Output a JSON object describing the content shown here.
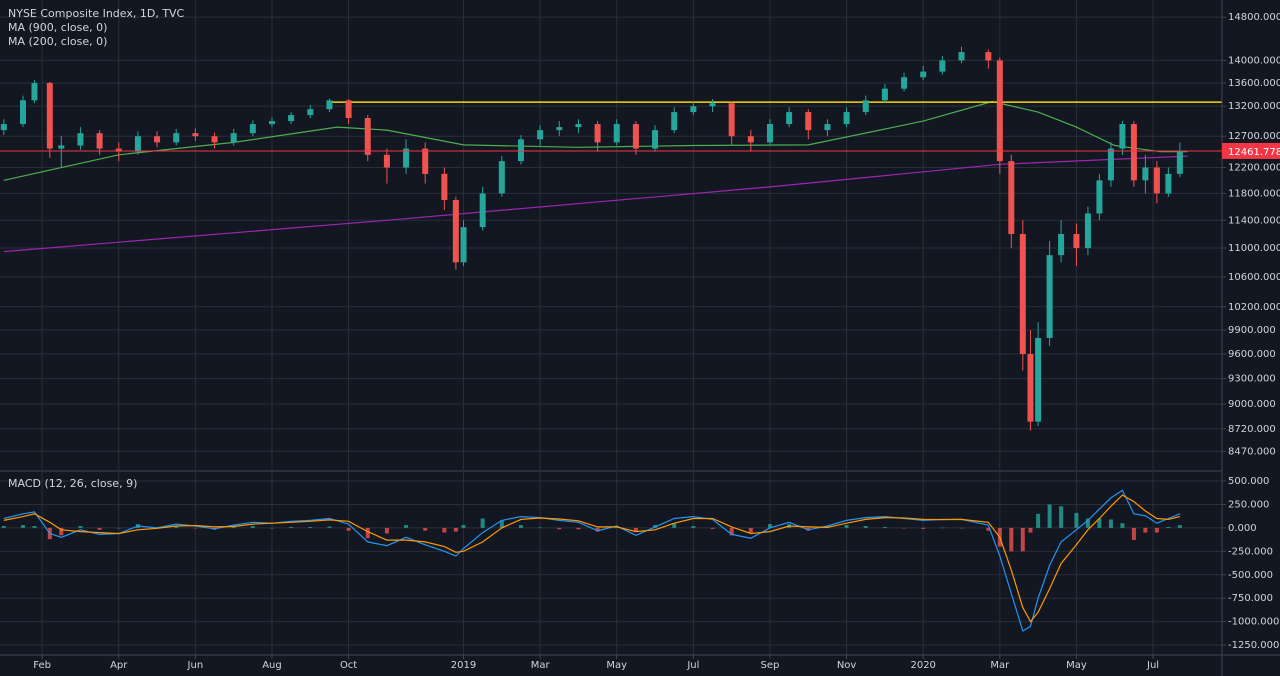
{
  "chart_data": [
    {
      "type": "candlestick",
      "title": "NYSE Composite Index, 1D, TVC",
      "log": true,
      "grid": true,
      "up_color": "#26a69a",
      "down_color": "#ef5350",
      "x": [
        0,
        0.5,
        0.8,
        1.2,
        1.5,
        2,
        2.5,
        3,
        3.5,
        4,
        4.5,
        5,
        5.5,
        6,
        6.5,
        7,
        7.5,
        8,
        8.5,
        9,
        9.5,
        10,
        10.5,
        11,
        11.5,
        11.8,
        12,
        12.5,
        13,
        13.5,
        14,
        14.5,
        15,
        15.5,
        16,
        16.5,
        17,
        17.5,
        18,
        18.5,
        19,
        19.5,
        20,
        20.5,
        21,
        21.5,
        22,
        22.5,
        23,
        23.5,
        24,
        24.5,
        25,
        25.7,
        26,
        26.3,
        26.6,
        26.8,
        27,
        27.3,
        27.6,
        28,
        28.3,
        28.6,
        28.9,
        29.2,
        29.5,
        29.8,
        30.1,
        30.4,
        30.7
      ],
      "open": [
        12800,
        12900,
        13300,
        13600,
        12500,
        12550,
        12750,
        12500,
        12450,
        12700,
        12600,
        12750,
        12700,
        12600,
        12750,
        12900,
        12950,
        13050,
        13150,
        13300,
        13000,
        12400,
        12200,
        12500,
        12100,
        11700,
        10800,
        11300,
        11800,
        12300,
        12650,
        12800,
        12850,
        12900,
        12600,
        12900,
        12500,
        12800,
        13100,
        13200,
        13250,
        12700,
        12600,
        12900,
        13100,
        12800,
        12900,
        13100,
        13300,
        13500,
        13700,
        13800,
        14000,
        14150,
        14000,
        12300,
        11200,
        9600,
        8800,
        9800,
        10900,
        11200,
        11000,
        11500,
        12000,
        12500,
        12900,
        12000,
        12200,
        11800,
        12100
      ],
      "high": [
        12980,
        13380,
        13650,
        13620,
        12700,
        12850,
        12800,
        12600,
        12780,
        12780,
        12820,
        12830,
        12760,
        12820,
        12960,
        13020,
        13100,
        13220,
        13330,
        13320,
        13050,
        12500,
        12650,
        12600,
        12200,
        11750,
        11400,
        11900,
        12380,
        12720,
        12880,
        12950,
        12980,
        12950,
        12980,
        12950,
        12880,
        13180,
        13280,
        13320,
        13280,
        12800,
        12980,
        13180,
        13150,
        12980,
        13180,
        13380,
        13580,
        13780,
        13900,
        14080,
        14250,
        14200,
        14050,
        12400,
        11400,
        9900,
        10000,
        11100,
        11400,
        11350,
        11600,
        12100,
        12600,
        12950,
        12950,
        12400,
        12300,
        12200,
        12600
      ],
      "low": [
        12720,
        12850,
        13250,
        12350,
        12200,
        12480,
        12400,
        12300,
        12400,
        12520,
        12550,
        12620,
        12500,
        12550,
        12700,
        12850,
        12900,
        13000,
        13100,
        12900,
        12300,
        11950,
        12100,
        11950,
        11550,
        10700,
        10750,
        11250,
        11750,
        12250,
        12550,
        12700,
        12750,
        12450,
        12550,
        12400,
        12450,
        12750,
        13050,
        13100,
        12550,
        12450,
        12550,
        12850,
        12650,
        12700,
        12850,
        13050,
        13250,
        13450,
        13650,
        13750,
        13950,
        13850,
        12100,
        11000,
        9400,
        8700,
        8750,
        9700,
        10800,
        10750,
        10900,
        11400,
        11900,
        12400,
        11900,
        11800,
        11650,
        11750,
        12050
      ],
      "close": [
        12900,
        13300,
        13600,
        12500,
        12550,
        12750,
        12500,
        12450,
        12700,
        12600,
        12750,
        12700,
        12600,
        12750,
        12900,
        12950,
        13050,
        13150,
        13300,
        13000,
        12400,
        12200,
        12500,
        12100,
        11700,
        10800,
        11300,
        11800,
        12300,
        12650,
        12800,
        12850,
        12900,
        12600,
        12900,
        12500,
        12800,
        13100,
        13200,
        13250,
        12700,
        12600,
        12900,
        13100,
        12800,
        12900,
        13100,
        13300,
        13500,
        13700,
        13800,
        14000,
        14150,
        14000,
        12300,
        11200,
        9600,
        8800,
        9800,
        10900,
        11200,
        11000,
        11500,
        12000,
        12500,
        12900,
        12000,
        12200,
        11800,
        12100,
        12450
      ],
      "series": [
        {
          "name": "MA (900, close, 0)",
          "color": "#9c27b0",
          "x": [
            0,
            10,
            20,
            26,
            30.9
          ],
          "values": [
            10950,
            11400,
            11900,
            12250,
            12380
          ]
        },
        {
          "name": "MA (200, close, 0)",
          "color": "#4caf50",
          "x": [
            0,
            3,
            6,
            8.7,
            10,
            12,
            15,
            18,
            21,
            24,
            25.8,
            27,
            28,
            29,
            30.2,
            30.9
          ],
          "values": [
            12000,
            12400,
            12600,
            12850,
            12800,
            12560,
            12520,
            12550,
            12560,
            12950,
            13280,
            13100,
            12850,
            12550,
            12450,
            12450
          ]
        }
      ],
      "hlines": [
        {
          "value": 13270,
          "from_x": 8.5,
          "color": "#f5d90a"
        }
      ],
      "last_price": 12461.778,
      "last_price_color": "#f23645",
      "xlim": [
        -0.1,
        31.8
      ],
      "ylim": [
        8270,
        15130
      ],
      "yticks": [
        {
          "value": 14800,
          "label": "14800.000"
        },
        {
          "value": 14000,
          "label": "14000.000"
        },
        {
          "value": 13600,
          "label": "13600.000"
        },
        {
          "value": 13200,
          "label": "13200.000"
        },
        {
          "value": 12700,
          "label": "12700.000"
        },
        {
          "value": 12200,
          "label": "12200.000"
        },
        {
          "value": 11800,
          "label": "11800.000"
        },
        {
          "value": 11400,
          "label": "11400.000"
        },
        {
          "value": 11000,
          "label": "11000.000"
        },
        {
          "value": 10600,
          "label": "10600.000"
        },
        {
          "value": 10200,
          "label": "10200.000"
        },
        {
          "value": 9900,
          "label": "9900.000"
        },
        {
          "value": 9600,
          "label": "9600.000"
        },
        {
          "value": 9300,
          "label": "9300.000"
        },
        {
          "value": 9000,
          "label": "9000.000"
        },
        {
          "value": 8720,
          "label": "8720.000"
        },
        {
          "value": 8470,
          "label": "8470.000"
        }
      ]
    },
    {
      "type": "macd",
      "title": "MACD (12, 26, close, 9)",
      "grid": true,
      "up_color": "#26a69a",
      "down_color": "#ef5350",
      "macd_color": "#2196f3",
      "signal_color": "#ff9800",
      "x": [
        0,
        0.5,
        0.8,
        1.2,
        1.5,
        2,
        2.5,
        3,
        3.5,
        4,
        4.5,
        5,
        5.5,
        6,
        6.5,
        7,
        7.5,
        8,
        8.5,
        9,
        9.5,
        10,
        10.5,
        11,
        11.5,
        11.8,
        12,
        12.5,
        13,
        13.5,
        14,
        14.5,
        15,
        15.5,
        16,
        16.5,
        17,
        17.5,
        18,
        18.5,
        19,
        19.5,
        20,
        20.5,
        21,
        21.5,
        22,
        22.5,
        23,
        23.5,
        24,
        24.5,
        25,
        25.7,
        26,
        26.3,
        26.6,
        26.8,
        27,
        27.3,
        27.6,
        28,
        28.3,
        28.6,
        28.9,
        29.2,
        29.5,
        29.8,
        30.1,
        30.4,
        30.7
      ],
      "macd": [
        100,
        150,
        170,
        -60,
        -100,
        -20,
        -70,
        -60,
        20,
        0,
        40,
        20,
        -10,
        30,
        60,
        50,
        70,
        80,
        100,
        40,
        -150,
        -190,
        -100,
        -180,
        -250,
        -300,
        -220,
        -50,
        80,
        120,
        110,
        80,
        60,
        -30,
        20,
        -80,
        10,
        100,
        120,
        90,
        -70,
        -110,
        0,
        60,
        -20,
        20,
        80,
        110,
        120,
        100,
        80,
        90,
        90,
        30,
        -300,
        -700,
        -1100,
        -1050,
        -750,
        -400,
        -150,
        -20,
        80,
        200,
        320,
        400,
        150,
        130,
        50,
        100,
        150
      ],
      "signal": [
        80,
        120,
        150,
        60,
        -20,
        -40,
        -50,
        -60,
        -20,
        -5,
        20,
        25,
        10,
        15,
        40,
        50,
        60,
        70,
        85,
        70,
        -40,
        -130,
        -130,
        -150,
        -200,
        -260,
        -250,
        -150,
        0,
        90,
        105,
        95,
        75,
        10,
        10,
        -40,
        -20,
        50,
        100,
        100,
        10,
        -60,
        -40,
        20,
        10,
        5,
        50,
        90,
        110,
        105,
        90,
        88,
        90,
        60,
        -100,
        -450,
        -850,
        -1000,
        -900,
        -650,
        -380,
        -180,
        -20,
        100,
        230,
        350,
        280,
        180,
        100,
        90,
        120
      ],
      "histogram": [
        20,
        30,
        20,
        -120,
        -80,
        20,
        -20,
        0,
        40,
        5,
        20,
        -5,
        -20,
        15,
        20,
        0,
        10,
        10,
        15,
        -30,
        -110,
        -60,
        30,
        -30,
        -50,
        -40,
        30,
        100,
        80,
        30,
        5,
        -15,
        -15,
        -40,
        10,
        -40,
        30,
        50,
        20,
        -10,
        -80,
        -50,
        40,
        40,
        -30,
        15,
        30,
        20,
        10,
        -5,
        -10,
        2,
        0,
        -30,
        -200,
        -250,
        -250,
        -50,
        150,
        250,
        230,
        160,
        100,
        100,
        90,
        50,
        -130,
        -50,
        -50,
        10,
        30
      ],
      "xlim": [
        -0.1,
        31.8
      ],
      "ylim": [
        -1356,
        596
      ],
      "yticks": [
        {
          "value": 500,
          "label": "500.000"
        },
        {
          "value": 250,
          "label": "250.000"
        },
        {
          "value": 0,
          "label": "0.000"
        },
        {
          "value": -250,
          "label": "-250.000"
        },
        {
          "value": -500,
          "label": "-500.000"
        },
        {
          "value": -750,
          "label": "-750.000"
        },
        {
          "value": -1000,
          "label": "-1000.000"
        },
        {
          "value": -1250,
          "label": "-1250.000"
        }
      ],
      "xticks": [
        {
          "value": 1,
          "label": "Feb"
        },
        {
          "value": 3,
          "label": "Apr"
        },
        {
          "value": 5,
          "label": "Jun"
        },
        {
          "value": 7,
          "label": "Aug"
        },
        {
          "value": 9,
          "label": "Oct"
        },
        {
          "value": 12,
          "label": "2019"
        },
        {
          "value": 14,
          "label": "Mar"
        },
        {
          "value": 16,
          "label": "May"
        },
        {
          "value": 18,
          "label": "Jul"
        },
        {
          "value": 20,
          "label": "Sep"
        },
        {
          "value": 22,
          "label": "Nov"
        },
        {
          "value": 24,
          "label": "2020"
        },
        {
          "value": 26,
          "label": "Mar"
        },
        {
          "value": 28,
          "label": "May"
        },
        {
          "value": 30,
          "label": "Jul"
        }
      ]
    }
  ]
}
